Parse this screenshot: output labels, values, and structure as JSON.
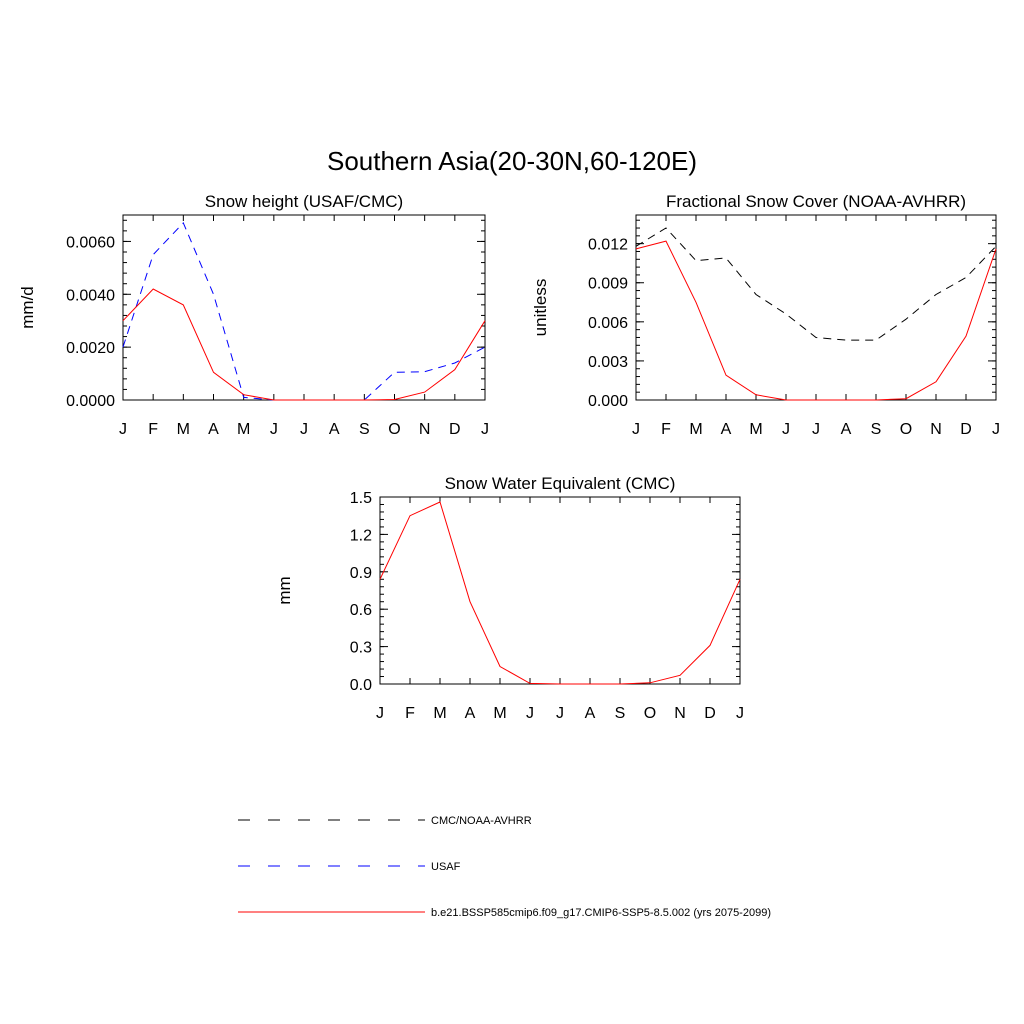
{
  "figure": {
    "title": "Southern Asia(20-30N,60-120E)"
  },
  "colors": {
    "black": "#000000",
    "blue": "#0000ff",
    "red": "#ff0000"
  },
  "legend": {
    "items": [
      {
        "label": "CMC/NOAA-AVHRR",
        "color": "#000000",
        "dash": "dashed"
      },
      {
        "label": "USAF",
        "color": "#0000ff",
        "dash": "dashed"
      },
      {
        "label": "b.e21.BSSP585cmip6.f09_g17.CMIP6-SSP5-8.5.002 (yrs 2075-2099)",
        "color": "#ff0000",
        "dash": "solid"
      }
    ]
  },
  "chart_data": [
    {
      "id": "snow-height",
      "type": "line",
      "title": "Snow height (USAF/CMC)",
      "ylabel": "mm/d",
      "categories": [
        "J",
        "F",
        "M",
        "A",
        "M",
        "J",
        "J",
        "A",
        "S",
        "O",
        "N",
        "D",
        "J"
      ],
      "ylim": [
        0,
        0.007
      ],
      "yticks": [
        0,
        0.002,
        0.004,
        0.006
      ],
      "ytick_labels": [
        "0.0000",
        "0.0020",
        "0.0040",
        "0.0060"
      ],
      "series": [
        {
          "name": "CMC/NOAA-AVHRR",
          "color": "#000000",
          "dash": "dashed",
          "values": [
            0,
            0,
            0,
            0,
            0,
            0,
            0,
            0,
            0,
            0,
            0,
            0,
            0
          ]
        },
        {
          "name": "USAF",
          "color": "#0000ff",
          "dash": "dashed",
          "values": [
            0.002,
            0.0055,
            0.0067,
            0.004,
            0.0001,
            0,
            0,
            0,
            0,
            0.00105,
            0.00107,
            0.0014,
            0.002
          ]
        },
        {
          "name": "b.e21.BSSP585cmip6.f09_g17.CMIP6-SSP5-8.5.002 (yrs 2075-2099)",
          "color": "#ff0000",
          "dash": "solid",
          "values": [
            0.003,
            0.0042,
            0.0036,
            0.00105,
            0.0002,
            0,
            0,
            0,
            0,
            2e-05,
            0.0003,
            0.00115,
            0.003
          ]
        }
      ]
    },
    {
      "id": "frac-snow-cover",
      "type": "line",
      "title": "Fractional Snow Cover (NOAA-AVHRR)",
      "ylabel": "unitless",
      "categories": [
        "J",
        "F",
        "M",
        "A",
        "M",
        "J",
        "J",
        "A",
        "S",
        "O",
        "N",
        "D",
        "J"
      ],
      "ylim": [
        0,
        0.0142
      ],
      "yticks": [
        0,
        0.003,
        0.006,
        0.009,
        0.012
      ],
      "ytick_labels": [
        "0.000",
        "0.003",
        "0.006",
        "0.009",
        "0.012"
      ],
      "series": [
        {
          "name": "CMC/NOAA-AVHRR",
          "color": "#000000",
          "dash": "dashed",
          "values": [
            0.0118,
            0.0132,
            0.0107,
            0.0109,
            0.0081,
            0.0066,
            0.0048,
            0.0046,
            0.0046,
            0.0062,
            0.0081,
            0.0094,
            0.0118
          ]
        },
        {
          "name": "b.e21.BSSP585cmip6.f09_g17.CMIP6-SSP5-8.5.002 (yrs 2075-2099)",
          "color": "#ff0000",
          "dash": "solid",
          "values": [
            0.0116,
            0.0122,
            0.0075,
            0.0019,
            0.0004,
            0,
            0,
            0,
            0,
            0.0001,
            0.0014,
            0.0049,
            0.0116
          ]
        }
      ]
    },
    {
      "id": "swe",
      "type": "line",
      "title": "Snow Water Equivalent (CMC)",
      "ylabel": "mm",
      "categories": [
        "J",
        "F",
        "M",
        "A",
        "M",
        "J",
        "J",
        "A",
        "S",
        "O",
        "N",
        "D",
        "J"
      ],
      "ylim": [
        0,
        1.5
      ],
      "yticks": [
        0,
        0.3,
        0.6,
        0.9,
        1.2,
        1.5
      ],
      "ytick_labels": [
        "0.0",
        "0.3",
        "0.6",
        "0.9",
        "1.2",
        "1.5"
      ],
      "series": [
        {
          "name": "CMC/NOAA-AVHRR",
          "color": "#000000",
          "dash": "dashed",
          "values": [
            0,
            0,
            0,
            0,
            0,
            0,
            0,
            0,
            0,
            0,
            0,
            0,
            0
          ]
        },
        {
          "name": "b.e21.BSSP585cmip6.f09_g17.CMIP6-SSP5-8.5.002 (yrs 2075-2099)",
          "color": "#ff0000",
          "dash": "solid",
          "values": [
            0.84,
            1.35,
            1.46,
            0.66,
            0.14,
            0.005,
            0,
            0,
            0,
            0.01,
            0.07,
            0.31,
            0.84
          ]
        }
      ]
    }
  ]
}
